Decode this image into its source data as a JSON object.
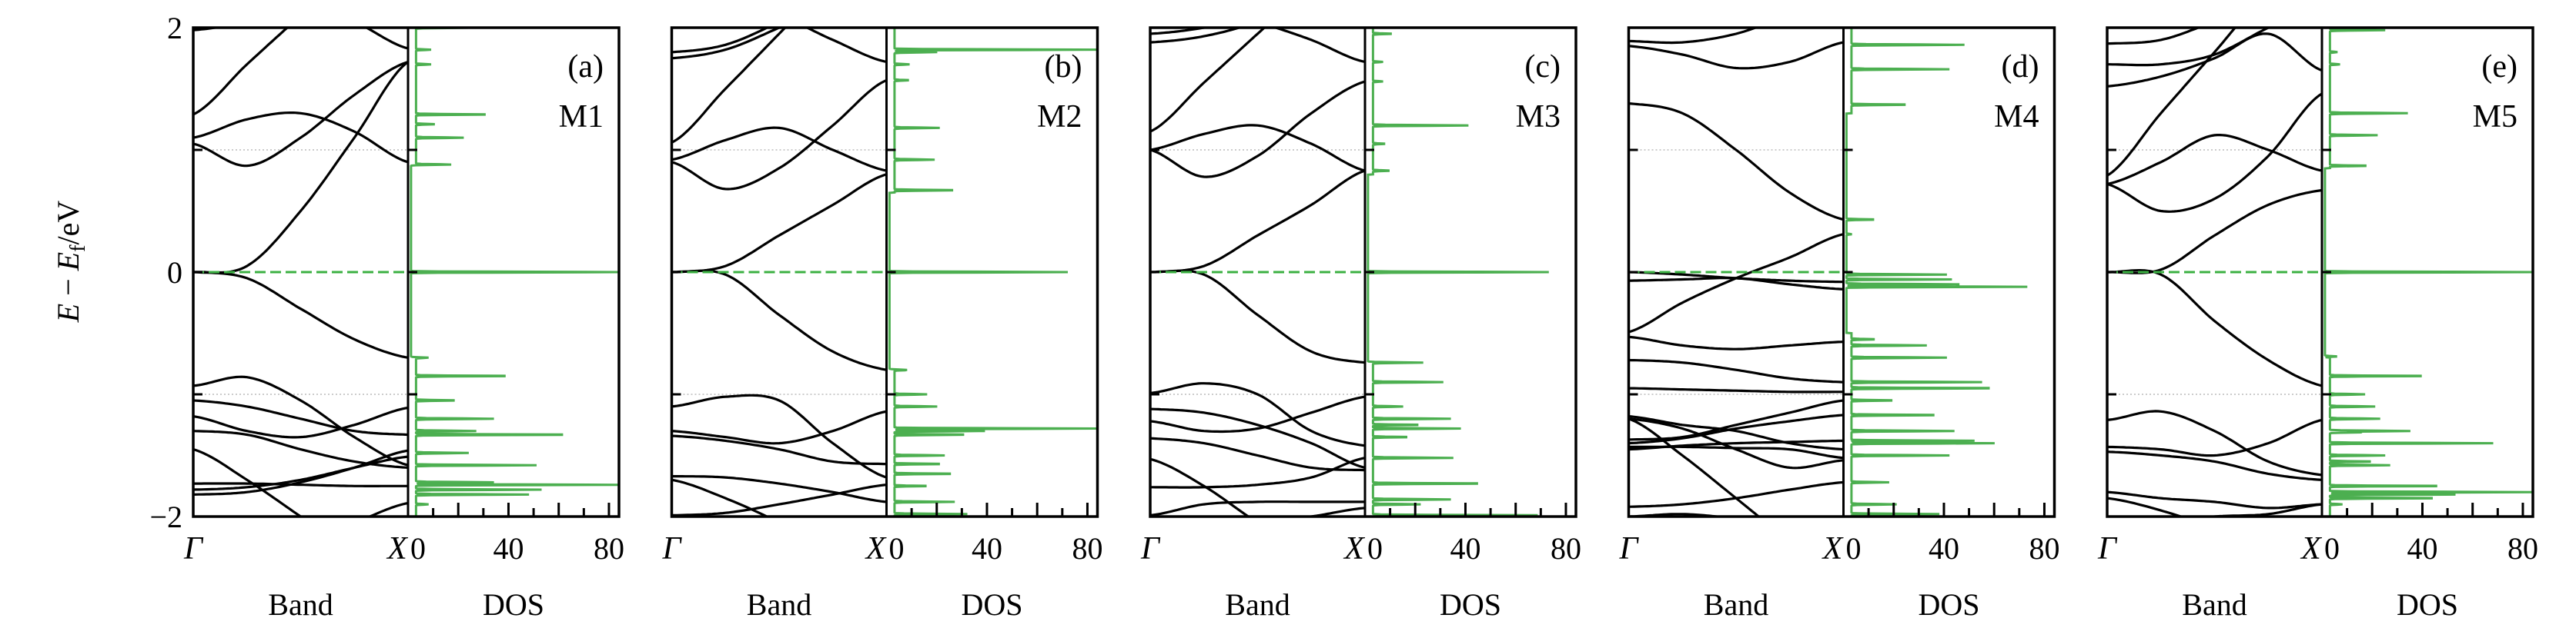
{
  "chart_data": {
    "type": "line",
    "ylabel": {
      "main": "E",
      "minus": " − ",
      "sym": "E",
      "sub": "f",
      "unit": "/eV"
    },
    "ylim": [
      -2,
      2
    ],
    "yticks": [
      "2",
      "0",
      "−2"
    ],
    "dos_xlim": [
      0,
      84
    ],
    "dos_ticks": [
      "0",
      "40",
      "80"
    ],
    "k_labels": [
      "Γ",
      "X"
    ],
    "band_xlabel": "Band",
    "dos_xlabel": "DOS",
    "colors": {
      "band": "#000000",
      "dos": "#4caf50",
      "fermi": "#3cb043",
      "grid": "#bbbbbb"
    },
    "k_points": [
      0,
      0.25,
      0.5,
      0.75,
      1
    ],
    "panels": [
      {
        "tag": "(a)",
        "name": "M1",
        "bands": [
          [
            0,
            0.05,
            0.5,
            1.1,
            1.72
          ],
          [
            0,
            -0.05,
            -0.3,
            -0.55,
            -0.7
          ],
          [
            1.29,
            1.7,
            2.1,
            2.5,
            2.8
          ],
          [
            1.1,
            1.25,
            1.3,
            1.15,
            0.9
          ],
          [
            1.05,
            0.87,
            1.1,
            1.45,
            1.72
          ],
          [
            2.3,
            2.4,
            2.2,
            2.05,
            1.83
          ],
          [
            1.98,
            2.05,
            2.2,
            2.4,
            2.5
          ],
          [
            -0.93,
            -0.86,
            -1.05,
            -1.35,
            -1.58
          ],
          [
            -1.05,
            -1.1,
            -1.2,
            -1.3,
            -1.33
          ],
          [
            -1.18,
            -1.3,
            -1.35,
            -1.25,
            -1.11
          ],
          [
            -1.3,
            -1.33,
            -1.45,
            -1.55,
            -1.6
          ],
          [
            -1.45,
            -1.7,
            -2.0,
            -2.3,
            -2.6
          ],
          [
            -1.73,
            -1.73,
            -1.74,
            -1.75,
            -1.75
          ],
          [
            -1.78,
            -1.76,
            -1.7,
            -1.6,
            -1.51
          ],
          [
            -1.82,
            -1.8,
            -1.72,
            -1.6,
            -1.46
          ],
          [
            -2.6,
            -2.4,
            -2.2,
            -2.05,
            -1.89
          ]
        ],
        "dos_gap": [
          -0.7,
          0.88
        ],
        "dos_peaks": [
          [
            2.0,
            21
          ],
          [
            1.82,
            6
          ],
          [
            1.7,
            6
          ],
          [
            1.29,
            31
          ],
          [
            1.21,
            8
          ],
          [
            1.1,
            19
          ],
          [
            0.88,
            16
          ],
          [
            0,
            84
          ],
          [
            -0.7,
            5
          ],
          [
            -0.85,
            40
          ],
          [
            -1.05,
            17
          ],
          [
            -1.2,
            31
          ],
          [
            -1.3,
            24
          ],
          [
            -1.33,
            66
          ],
          [
            -1.48,
            21
          ],
          [
            -1.58,
            48
          ],
          [
            -1.72,
            31
          ],
          [
            -1.74,
            84
          ],
          [
            -1.78,
            50
          ],
          [
            -1.82,
            45
          ],
          [
            -1.9,
            5
          ]
        ]
      },
      {
        "tag": "(b)",
        "name": "M2",
        "bands": [
          [
            0,
            0.05,
            0.3,
            0.55,
            0.8
          ],
          [
            0,
            -0.02,
            -0.35,
            -0.65,
            -0.8
          ],
          [
            0.92,
            1.08,
            1.18,
            1.0,
            0.83
          ],
          [
            0.9,
            0.68,
            0.85,
            1.2,
            1.57
          ],
          [
            1.06,
            1.5,
            1.95,
            2.4,
            2.8
          ],
          [
            2.3,
            2.2,
            2.1,
            1.9,
            1.72
          ],
          [
            1.75,
            1.82,
            2.0,
            2.2,
            2.4
          ],
          [
            1.8,
            1.86,
            2.05,
            2.3,
            2.5
          ],
          [
            -1.1,
            -1.02,
            -1.05,
            -1.4,
            -1.68
          ],
          [
            -1.3,
            -1.35,
            -1.4,
            -1.3,
            -1.14
          ],
          [
            -1.34,
            -1.38,
            -1.45,
            -1.55,
            -1.57
          ],
          [
            -1.67,
            -1.68,
            -1.73,
            -1.8,
            -1.88
          ],
          [
            -1.7,
            -1.85,
            -2.05,
            -2.3,
            -2.5
          ],
          [
            -1.99,
            -1.97,
            -1.9,
            -1.82,
            -1.74
          ]
        ],
        "dos_gap": [
          -0.8,
          0.65
        ],
        "dos_peaks": [
          [
            1.82,
            84
          ],
          [
            1.8,
            17
          ],
          [
            1.7,
            6
          ],
          [
            1.57,
            6
          ],
          [
            1.18,
            18
          ],
          [
            0.92,
            16
          ],
          [
            0.67,
            26
          ],
          [
            0,
            71
          ],
          [
            -0.8,
            7
          ],
          [
            -1.0,
            13
          ],
          [
            -1.1,
            17
          ],
          [
            -1.28,
            84
          ],
          [
            -1.3,
            36
          ],
          [
            -1.33,
            31
          ],
          [
            -1.5,
            20
          ],
          [
            -1.57,
            20
          ],
          [
            -1.65,
            25
          ],
          [
            -1.75,
            14
          ],
          [
            -1.88,
            24
          ],
          [
            -1.98,
            29
          ]
        ]
      },
      {
        "tag": "(c)",
        "name": "M3",
        "bands": [
          [
            0,
            0.05,
            0.3,
            0.55,
            0.83
          ],
          [
            0,
            -0.02,
            -0.35,
            -0.65,
            -0.74
          ],
          [
            1.0,
            1.13,
            1.2,
            1.05,
            0.83
          ],
          [
            1.0,
            0.78,
            0.95,
            1.3,
            1.56
          ],
          [
            1.15,
            1.55,
            1.95,
            2.35,
            2.7
          ],
          [
            2.3,
            2.2,
            2.05,
            1.9,
            1.72
          ],
          [
            1.95,
            2.0,
            2.1,
            2.3,
            2.4
          ],
          [
            1.88,
            1.93,
            2.05,
            2.25,
            2.4
          ],
          [
            -0.99,
            -0.91,
            -1.0,
            -1.3,
            -1.42
          ],
          [
            -1.12,
            -1.15,
            -1.25,
            -1.4,
            -1.6
          ],
          [
            -1.22,
            -1.3,
            -1.28,
            -1.15,
            -1.02
          ],
          [
            -1.36,
            -1.4,
            -1.5,
            -1.6,
            -1.62
          ],
          [
            -1.53,
            -1.75,
            -2.05,
            -2.3,
            -2.5
          ],
          [
            -1.76,
            -1.76,
            -1.74,
            -1.68,
            -1.52
          ],
          [
            -1.99,
            -1.9,
            -1.88,
            -1.88,
            -1.88
          ],
          [
            -2.05,
            -2.05,
            -2.05,
            -2.0,
            -1.93
          ]
        ],
        "dos_gap": [
          -0.74,
          0.8
        ],
        "dos_peaks": [
          [
            1.95,
            8
          ],
          [
            1.72,
            4
          ],
          [
            1.56,
            4
          ],
          [
            1.2,
            38
          ],
          [
            1.05,
            5
          ],
          [
            0.83,
            7
          ],
          [
            0,
            72
          ],
          [
            -0.74,
            20
          ],
          [
            -0.9,
            28
          ],
          [
            -1.1,
            12
          ],
          [
            -1.2,
            31
          ],
          [
            -1.25,
            20
          ],
          [
            -1.28,
            35
          ],
          [
            -1.35,
            15
          ],
          [
            -1.52,
            32
          ],
          [
            -1.73,
            47
          ],
          [
            -1.86,
            31
          ],
          [
            -1.9,
            19
          ],
          [
            -1.99,
            74
          ]
        ]
      },
      {
        "tag": "(d)",
        "name": "M4",
        "bands": [
          [
            1.89,
            1.88,
            1.95,
            2.1,
            2.2
          ],
          [
            1.85,
            1.78,
            1.67,
            1.72,
            1.88
          ],
          [
            1.38,
            1.3,
            1.0,
            0.65,
            0.43
          ],
          [
            -0.49,
            -0.25,
            -0.05,
            0.12,
            0.31
          ],
          [
            0,
            -0.02,
            -0.05,
            -0.07,
            -0.08
          ],
          [
            -0.07,
            -0.06,
            -0.05,
            -0.1,
            -0.14
          ],
          [
            -0.53,
            -0.6,
            -0.63,
            -0.6,
            -0.57
          ],
          [
            -0.72,
            -0.74,
            -0.8,
            -0.87,
            -0.9
          ],
          [
            -0.95,
            -0.96,
            -0.97,
            -0.98,
            -0.98
          ],
          [
            -1.18,
            -1.25,
            -1.3,
            -1.4,
            -1.45
          ],
          [
            -1.2,
            -1.28,
            -1.45,
            -1.6,
            -1.54
          ],
          [
            -1.37,
            -1.35,
            -1.25,
            -1.15,
            -1.05
          ],
          [
            -1.4,
            -1.36,
            -1.28,
            -1.22,
            -1.17
          ],
          [
            -1.45,
            -1.42,
            -1.4,
            -1.39,
            -1.38
          ],
          [
            -1.43,
            -1.43,
            -1.44,
            -1.45,
            -1.52
          ],
          [
            -1.2,
            -1.5,
            -1.85,
            -2.2,
            -2.5
          ],
          [
            -1.92,
            -1.9,
            -1.85,
            -1.78,
            -1.72
          ],
          [
            -2.0,
            -1.98,
            -2.02,
            -2.1,
            -2.2
          ]
        ],
        "dos_gap": [
          -0.5,
          1.3
        ],
        "dos_peaks": [
          [
            1.86,
            45
          ],
          [
            1.66,
            39
          ],
          [
            1.37,
            24
          ],
          [
            0.43,
            12
          ],
          [
            0.31,
            2
          ],
          [
            -0.02,
            40
          ],
          [
            -0.06,
            42
          ],
          [
            -0.1,
            45
          ],
          [
            -0.12,
            72
          ],
          [
            -0.55,
            10
          ],
          [
            -0.6,
            30
          ],
          [
            -0.7,
            38
          ],
          [
            -0.9,
            52
          ],
          [
            -0.95,
            62
          ],
          [
            -1.05,
            18
          ],
          [
            -1.17,
            37
          ],
          [
            -1.3,
            41
          ],
          [
            -1.38,
            49
          ],
          [
            -1.4,
            57
          ],
          [
            -1.5,
            39
          ],
          [
            -1.72,
            15
          ],
          [
            -1.9,
            18
          ],
          [
            -1.98,
            35
          ]
        ]
      },
      {
        "tag": "(e)",
        "name": "M5",
        "bands": [
          [
            1.87,
            1.9,
            2.05,
            2.2,
            2.3
          ],
          [
            1.7,
            1.7,
            1.78,
            2.0,
            2.2
          ],
          [
            1.52,
            1.6,
            1.75,
            1.95,
            1.65
          ],
          [
            0.79,
            1.3,
            1.8,
            2.3,
            2.6
          ],
          [
            0.72,
            0.9,
            1.12,
            1.0,
            0.83
          ],
          [
            0.72,
            0.5,
            0.6,
            0.95,
            1.46
          ],
          [
            0,
            0.02,
            0.3,
            0.55,
            0.67
          ],
          [
            0,
            -0.02,
            -0.4,
            -0.72,
            -0.93
          ],
          [
            -1.21,
            -1.14,
            -1.3,
            -1.55,
            -1.66
          ],
          [
            -1.43,
            -1.45,
            -1.5,
            -1.4,
            -1.21
          ],
          [
            -1.47,
            -1.5,
            -1.55,
            -1.65,
            -1.7
          ],
          [
            -1.8,
            -1.85,
            -1.88,
            -1.93,
            -1.9
          ],
          [
            -1.85,
            -1.95,
            -2.1,
            -2.3,
            -2.5
          ],
          [
            -2.1,
            -2.05,
            -2.0,
            -1.98,
            -1.9
          ]
        ],
        "dos_gap": [
          -0.7,
          0.85
        ],
        "dos_peaks": [
          [
            1.98,
            22
          ],
          [
            1.8,
            3
          ],
          [
            1.7,
            4
          ],
          [
            1.3,
            31
          ],
          [
            1.12,
            19
          ],
          [
            0.87,
            16
          ],
          [
            0,
            84
          ],
          [
            -0.69,
            5
          ],
          [
            -0.85,
            41
          ],
          [
            -1.0,
            14
          ],
          [
            -1.1,
            18
          ],
          [
            -1.2,
            20
          ],
          [
            -1.3,
            32
          ],
          [
            -1.31,
            14
          ],
          [
            -1.4,
            65
          ],
          [
            -1.5,
            22
          ],
          [
            -1.55,
            18
          ],
          [
            -1.58,
            24
          ],
          [
            -1.75,
            48
          ],
          [
            -1.8,
            84
          ],
          [
            -1.82,
            50
          ],
          [
            -1.85,
            46
          ],
          [
            -1.9,
            5
          ]
        ]
      }
    ]
  }
}
